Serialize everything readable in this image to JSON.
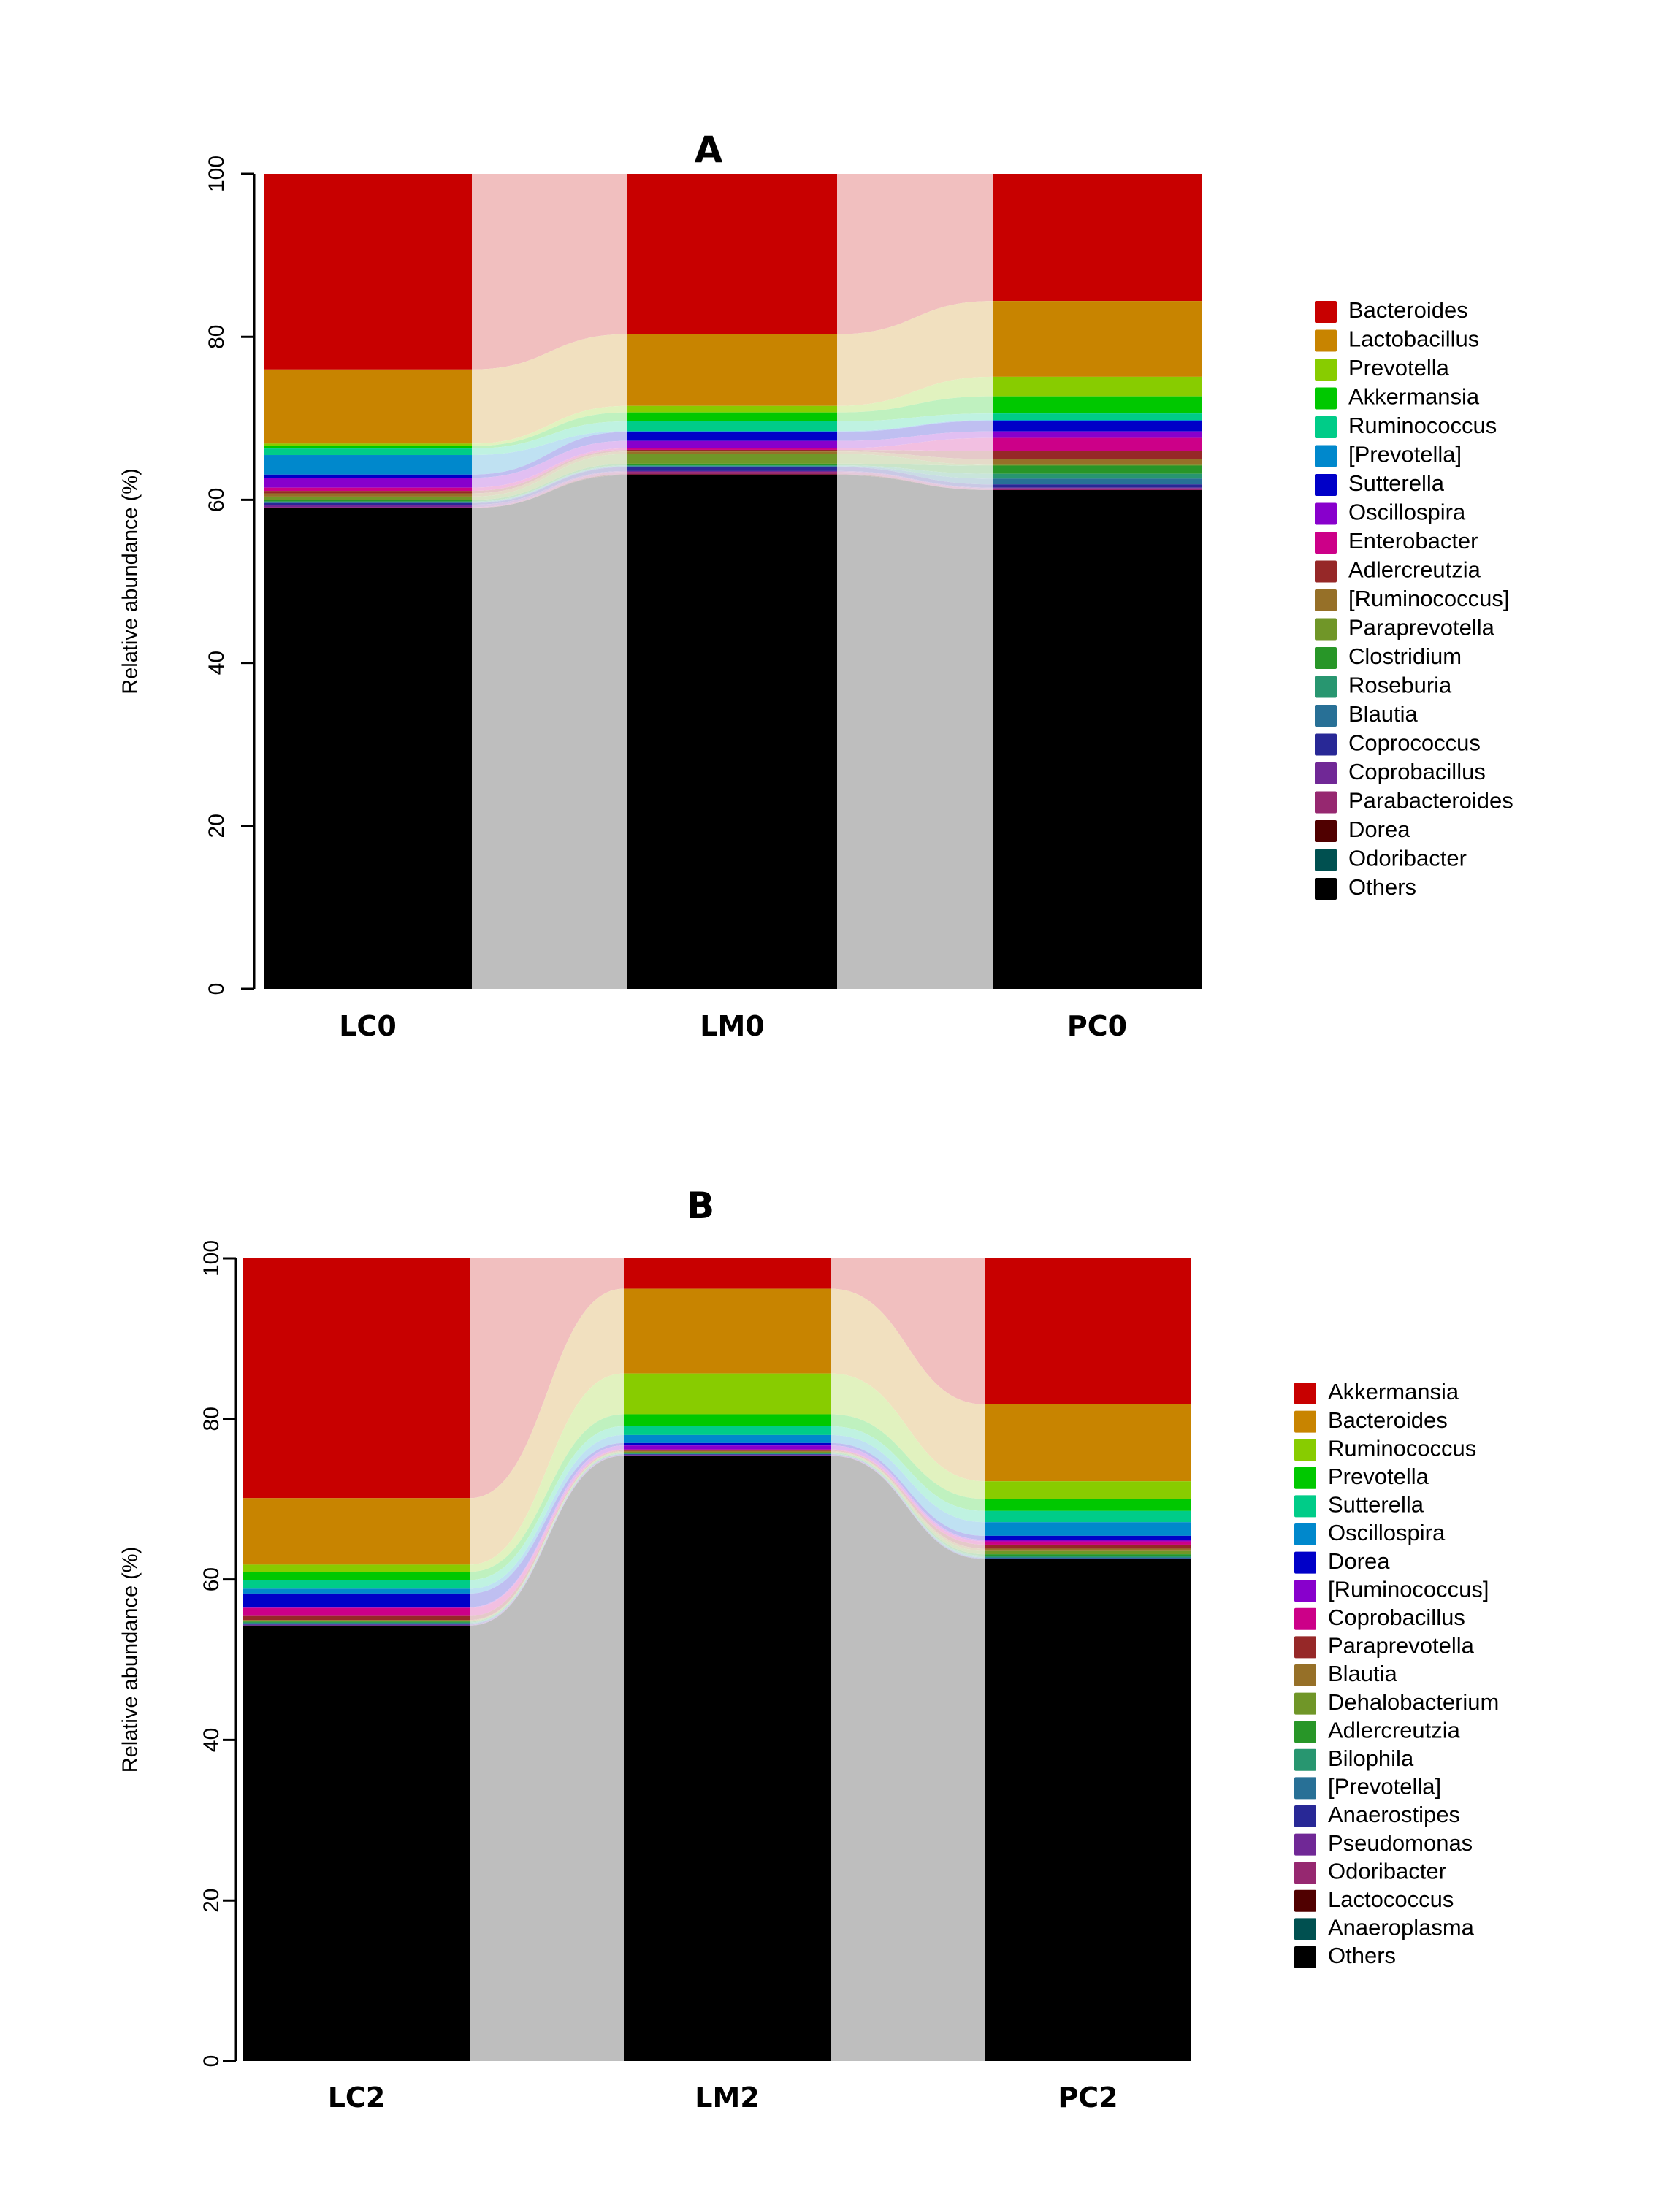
{
  "chart_data": [
    {
      "type": "bar",
      "subtype": "stacked-alluvial",
      "title": "A",
      "xlabel": "",
      "ylabel": "Relative abundance (%)",
      "ylim": [
        0,
        100
      ],
      "yticks": [
        0,
        20,
        40,
        60,
        80,
        100
      ],
      "grid": false,
      "legend_position": "right",
      "categories": [
        "LC0",
        "LM0",
        "PC0"
      ],
      "series": [
        {
          "name": "Bacteroides",
          "color": "#C80000",
          "values": [
            24.0,
            19.7,
            15.6
          ]
        },
        {
          "name": "Lactobacillus",
          "color": "#C88400",
          "values": [
            9.1,
            8.8,
            9.3
          ]
        },
        {
          "name": "Prevotella",
          "color": "#88CC00",
          "values": [
            0.3,
            0.8,
            2.4
          ]
        },
        {
          "name": "Akkermansia",
          "color": "#00C800",
          "values": [
            0.3,
            1.1,
            2.1
          ]
        },
        {
          "name": "Ruminococcus",
          "color": "#00CC88",
          "values": [
            0.8,
            1.2,
            0.8
          ]
        },
        {
          "name": "[Prevotella]",
          "color": "#0088CC",
          "values": [
            2.4,
            0.1,
            0.1
          ]
        },
        {
          "name": "Sutterella",
          "color": "#0000C8",
          "values": [
            0.4,
            1.1,
            1.3
          ]
        },
        {
          "name": "Oscillospira",
          "color": "#8800CC",
          "values": [
            1.2,
            0.9,
            0.8
          ]
        },
        {
          "name": "Enterobacter",
          "color": "#CC0088",
          "values": [
            0.4,
            0.2,
            1.6
          ]
        },
        {
          "name": "Adlercreutzia",
          "color": "#962828",
          "values": [
            0.3,
            0.2,
            1.0
          ]
        },
        {
          "name": "[Ruminococcus]",
          "color": "#967028",
          "values": [
            0.4,
            0.3,
            0.7
          ]
        },
        {
          "name": "Paraprevotella",
          "color": "#709628",
          "values": [
            0.4,
            1.2,
            0.1
          ]
        },
        {
          "name": "Clostridium",
          "color": "#289628",
          "values": [
            0.2,
            0.2,
            1.0
          ]
        },
        {
          "name": "Roseburia",
          "color": "#289670",
          "values": [
            0.1,
            0.1,
            0.6
          ]
        },
        {
          "name": "Blautia",
          "color": "#287096",
          "values": [
            0.1,
            0.1,
            0.7
          ]
        },
        {
          "name": "Coprococcus",
          "color": "#282896",
          "values": [
            0.2,
            0.5,
            0.4
          ]
        },
        {
          "name": "Coprobacillus",
          "color": "#702896",
          "values": [
            0.3,
            0.1,
            0.1
          ]
        },
        {
          "name": "Parabacteroides",
          "color": "#962870",
          "values": [
            0.1,
            0.3,
            0.2
          ]
        },
        {
          "name": "Dorea",
          "color": "#500000",
          "values": [
            0.0,
            0.1,
            0.0
          ]
        },
        {
          "name": "Odoribacter",
          "color": "#005050",
          "values": [
            0.0,
            0.0,
            0.0
          ]
        },
        {
          "name": "Others",
          "color": "#000000",
          "values": [
            59.0,
            63.1,
            61.2
          ]
        }
      ]
    },
    {
      "type": "bar",
      "subtype": "stacked-alluvial",
      "title": "B",
      "xlabel": "",
      "ylabel": "Relative abundance (%)",
      "ylim": [
        0,
        100
      ],
      "yticks": [
        0,
        20,
        40,
        60,
        80,
        100
      ],
      "grid": false,
      "legend_position": "right",
      "categories": [
        "LC2",
        "LM2",
        "PC2"
      ],
      "series": [
        {
          "name": "Akkermansia",
          "color": "#C80000",
          "values": [
            29.9,
            3.8,
            18.2
          ]
        },
        {
          "name": "Bacteroides",
          "color": "#C88400",
          "values": [
            8.3,
            10.6,
            9.6
          ]
        },
        {
          "name": "Ruminococcus",
          "color": "#88CC00",
          "values": [
            0.9,
            5.1,
            2.2
          ]
        },
        {
          "name": "Prevotella",
          "color": "#00C800",
          "values": [
            1.0,
            1.5,
            1.5
          ]
        },
        {
          "name": "Sutterella",
          "color": "#00CC88",
          "values": [
            1.1,
            1.1,
            1.4
          ]
        },
        {
          "name": "Oscillospira",
          "color": "#0088CC",
          "values": [
            0.6,
            1.0,
            1.7
          ]
        },
        {
          "name": "Dorea",
          "color": "#0000C8",
          "values": [
            1.7,
            0.3,
            0.5
          ]
        },
        {
          "name": "[Ruminococcus]",
          "color": "#8800CC",
          "values": [
            0.1,
            0.5,
            0.2
          ]
        },
        {
          "name": "Coprobacillus",
          "color": "#CC0088",
          "values": [
            1.0,
            0.1,
            0.4
          ]
        },
        {
          "name": "Paraprevotella",
          "color": "#962828",
          "values": [
            0.5,
            0.1,
            0.5
          ]
        },
        {
          "name": "Blautia",
          "color": "#967028",
          "values": [
            0.1,
            0.1,
            0.3
          ]
        },
        {
          "name": "Dehalobacterium",
          "color": "#709628",
          "values": [
            0.1,
            0.1,
            0.4
          ]
        },
        {
          "name": "Adlercreutzia",
          "color": "#289628",
          "values": [
            0.1,
            0.1,
            0.2
          ]
        },
        {
          "name": "Bilophila",
          "color": "#289670",
          "values": [
            0.1,
            0.1,
            0.2
          ]
        },
        {
          "name": "[Prevotella]",
          "color": "#287096",
          "values": [
            0.1,
            0.0,
            0.1
          ]
        },
        {
          "name": "Anaerostipes",
          "color": "#282896",
          "values": [
            0.1,
            0.1,
            0.1
          ]
        },
        {
          "name": "Pseudomonas",
          "color": "#702896",
          "values": [
            0.1,
            0.1,
            0.0
          ]
        },
        {
          "name": "Odoribacter",
          "color": "#962870",
          "values": [
            0.0,
            0.0,
            0.0
          ]
        },
        {
          "name": "Lactococcus",
          "color": "#500000",
          "values": [
            0.0,
            0.0,
            0.0
          ]
        },
        {
          "name": "Anaeroplasma",
          "color": "#005050",
          "values": [
            0.0,
            0.0,
            0.0
          ]
        },
        {
          "name": "Others",
          "color": "#000000",
          "values": [
            54.3,
            75.7,
            62.6
          ]
        }
      ]
    }
  ]
}
